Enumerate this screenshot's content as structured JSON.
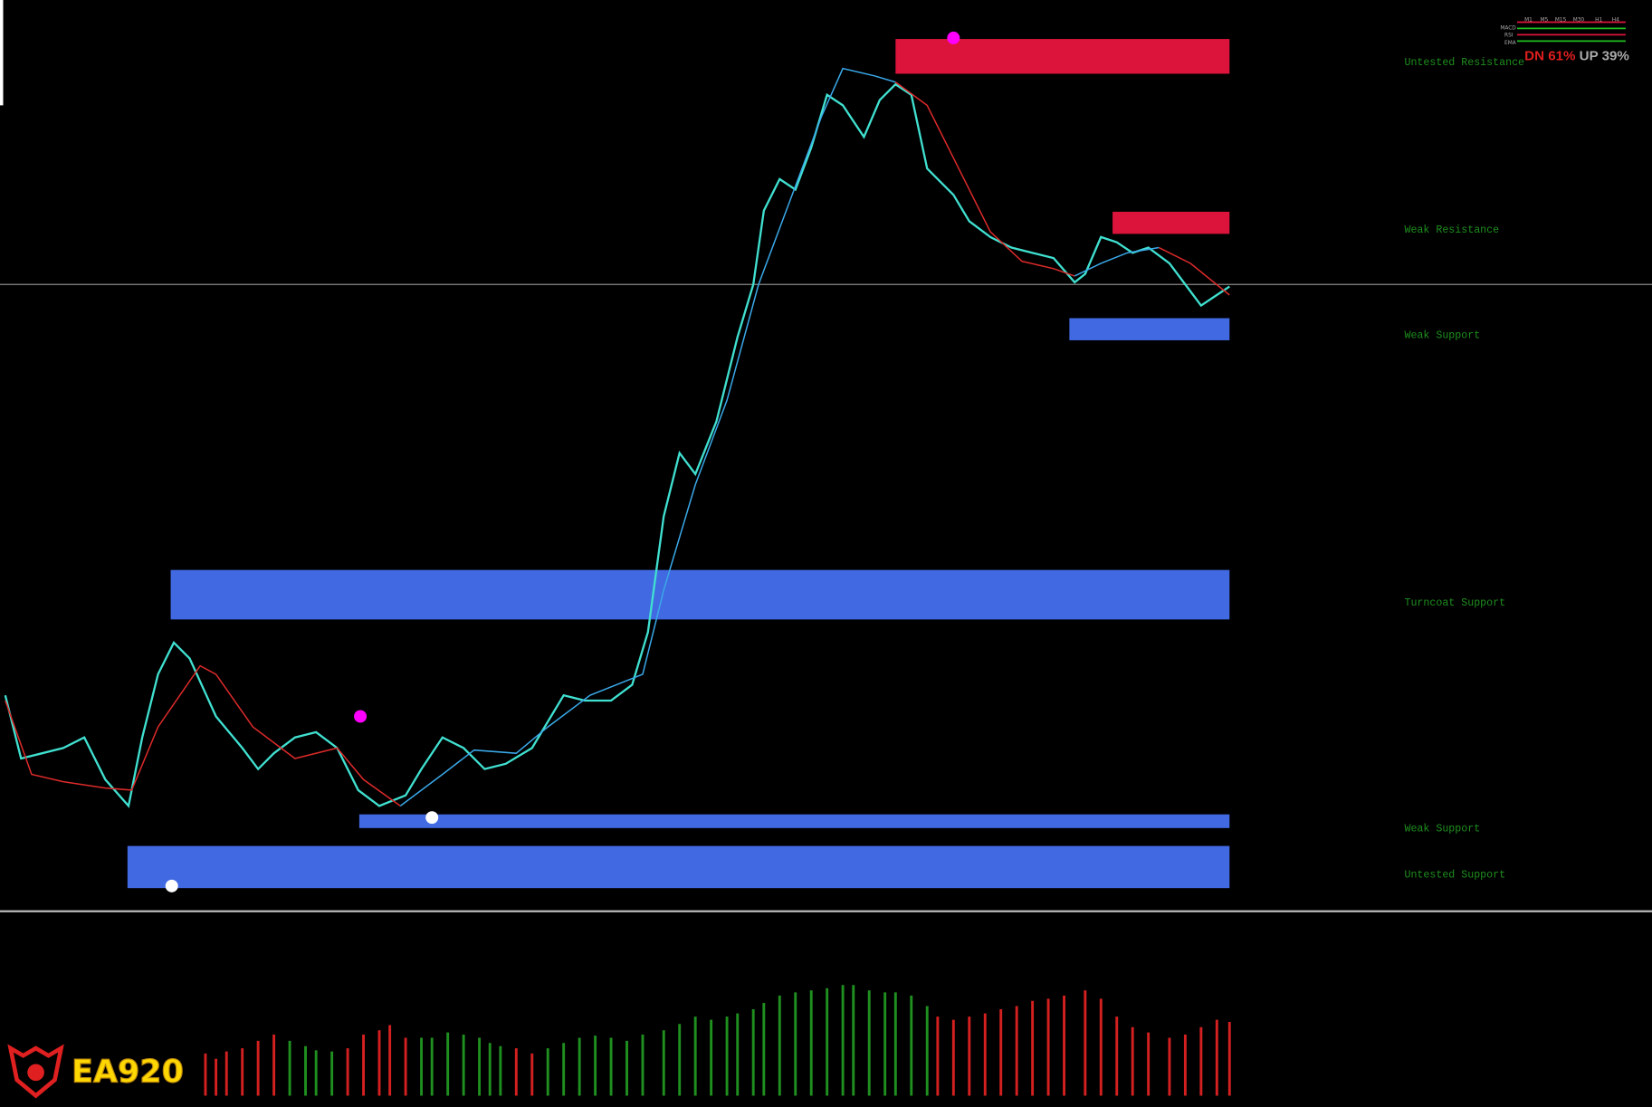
{
  "zones": [
    "Untested Resistance",
    "Weak Resistance",
    "Weak Support",
    "Turncoat Support",
    "Weak Support",
    "Untested Support"
  ],
  "bias": {
    "down": "DN 61%",
    "up": "UP 39%"
  },
  "timeframes": [
    "M1",
    "M5",
    "M15",
    "M30",
    "H1",
    "H4"
  ],
  "indicators": [
    "MACD",
    "RSI",
    "EMA"
  ],
  "logo": "EA920"
}
